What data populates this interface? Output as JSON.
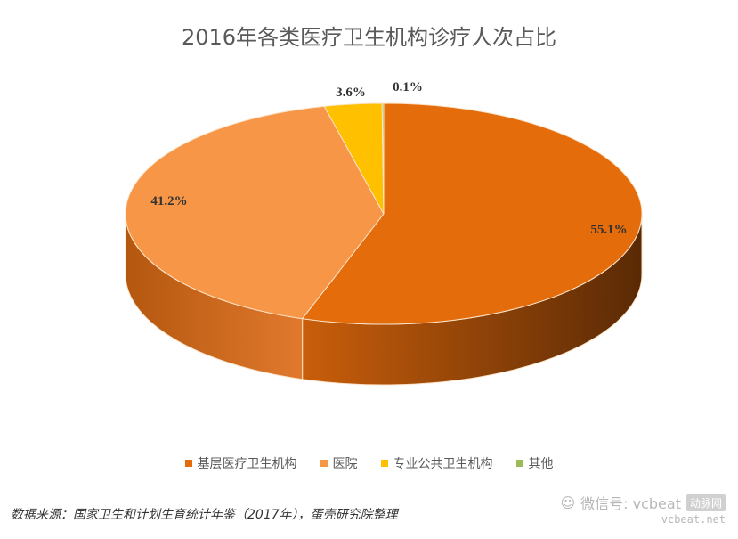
{
  "chart_data": {
    "type": "pie",
    "title": "2016年各类医疗卫生机构诊疗人次占比",
    "categories": [
      "基层医疗卫生机构",
      "医院",
      "专业公共卫生机构",
      "其他"
    ],
    "values": [
      55.1,
      41.2,
      3.6,
      0.1
    ],
    "value_labels": [
      "55.1%",
      "41.2%",
      "3.6%",
      "0.1%"
    ],
    "colors": [
      "#E46C0A",
      "#F79646",
      "#FFC000",
      "#9BBB59"
    ],
    "legend_position": "bottom",
    "style": "3d"
  },
  "source_note": "数据来源：国家卫生和计划生育统计年鉴（2017年），蛋壳研究院整理",
  "watermark": {
    "wechat_label": "微信号: vcbeat",
    "brand": "动脉网",
    "url": "vcbeat.net"
  }
}
